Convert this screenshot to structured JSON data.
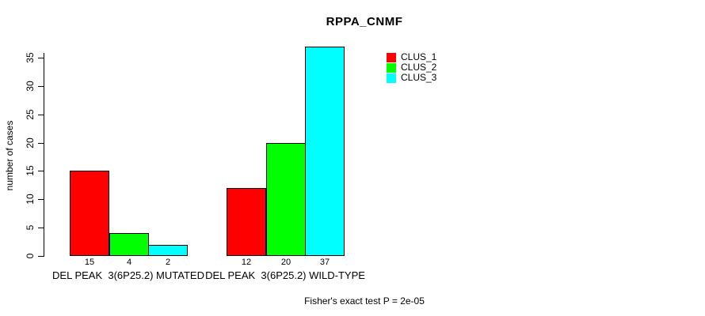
{
  "page": {
    "background_color": "#ffffff",
    "text_color": "#000000"
  },
  "chart_data": {
    "type": "bar",
    "title": "RPPA_CNMF",
    "ylabel": "number of cases",
    "xlabel": "",
    "ylim": [
      0,
      35
    ],
    "yticks": [
      0,
      5,
      10,
      15,
      20,
      25,
      30,
      35
    ],
    "grid": false,
    "legend_position": "top-right",
    "categories": [
      "DEL PEAK  3(6P25.2) MUTATED",
      "DEL PEAK  3(6P25.2) WILD-TYPE"
    ],
    "series": [
      {
        "name": "CLUS_1",
        "color": "#ff0000",
        "values": [
          15,
          12
        ]
      },
      {
        "name": "CLUS_2",
        "color": "#00ff00",
        "values": [
          4,
          20
        ]
      },
      {
        "name": "CLUS_3",
        "color": "#00ffff",
        "values": [
          2,
          37
        ]
      }
    ],
    "footer": "Fisher's exact test P = 2e-05"
  }
}
